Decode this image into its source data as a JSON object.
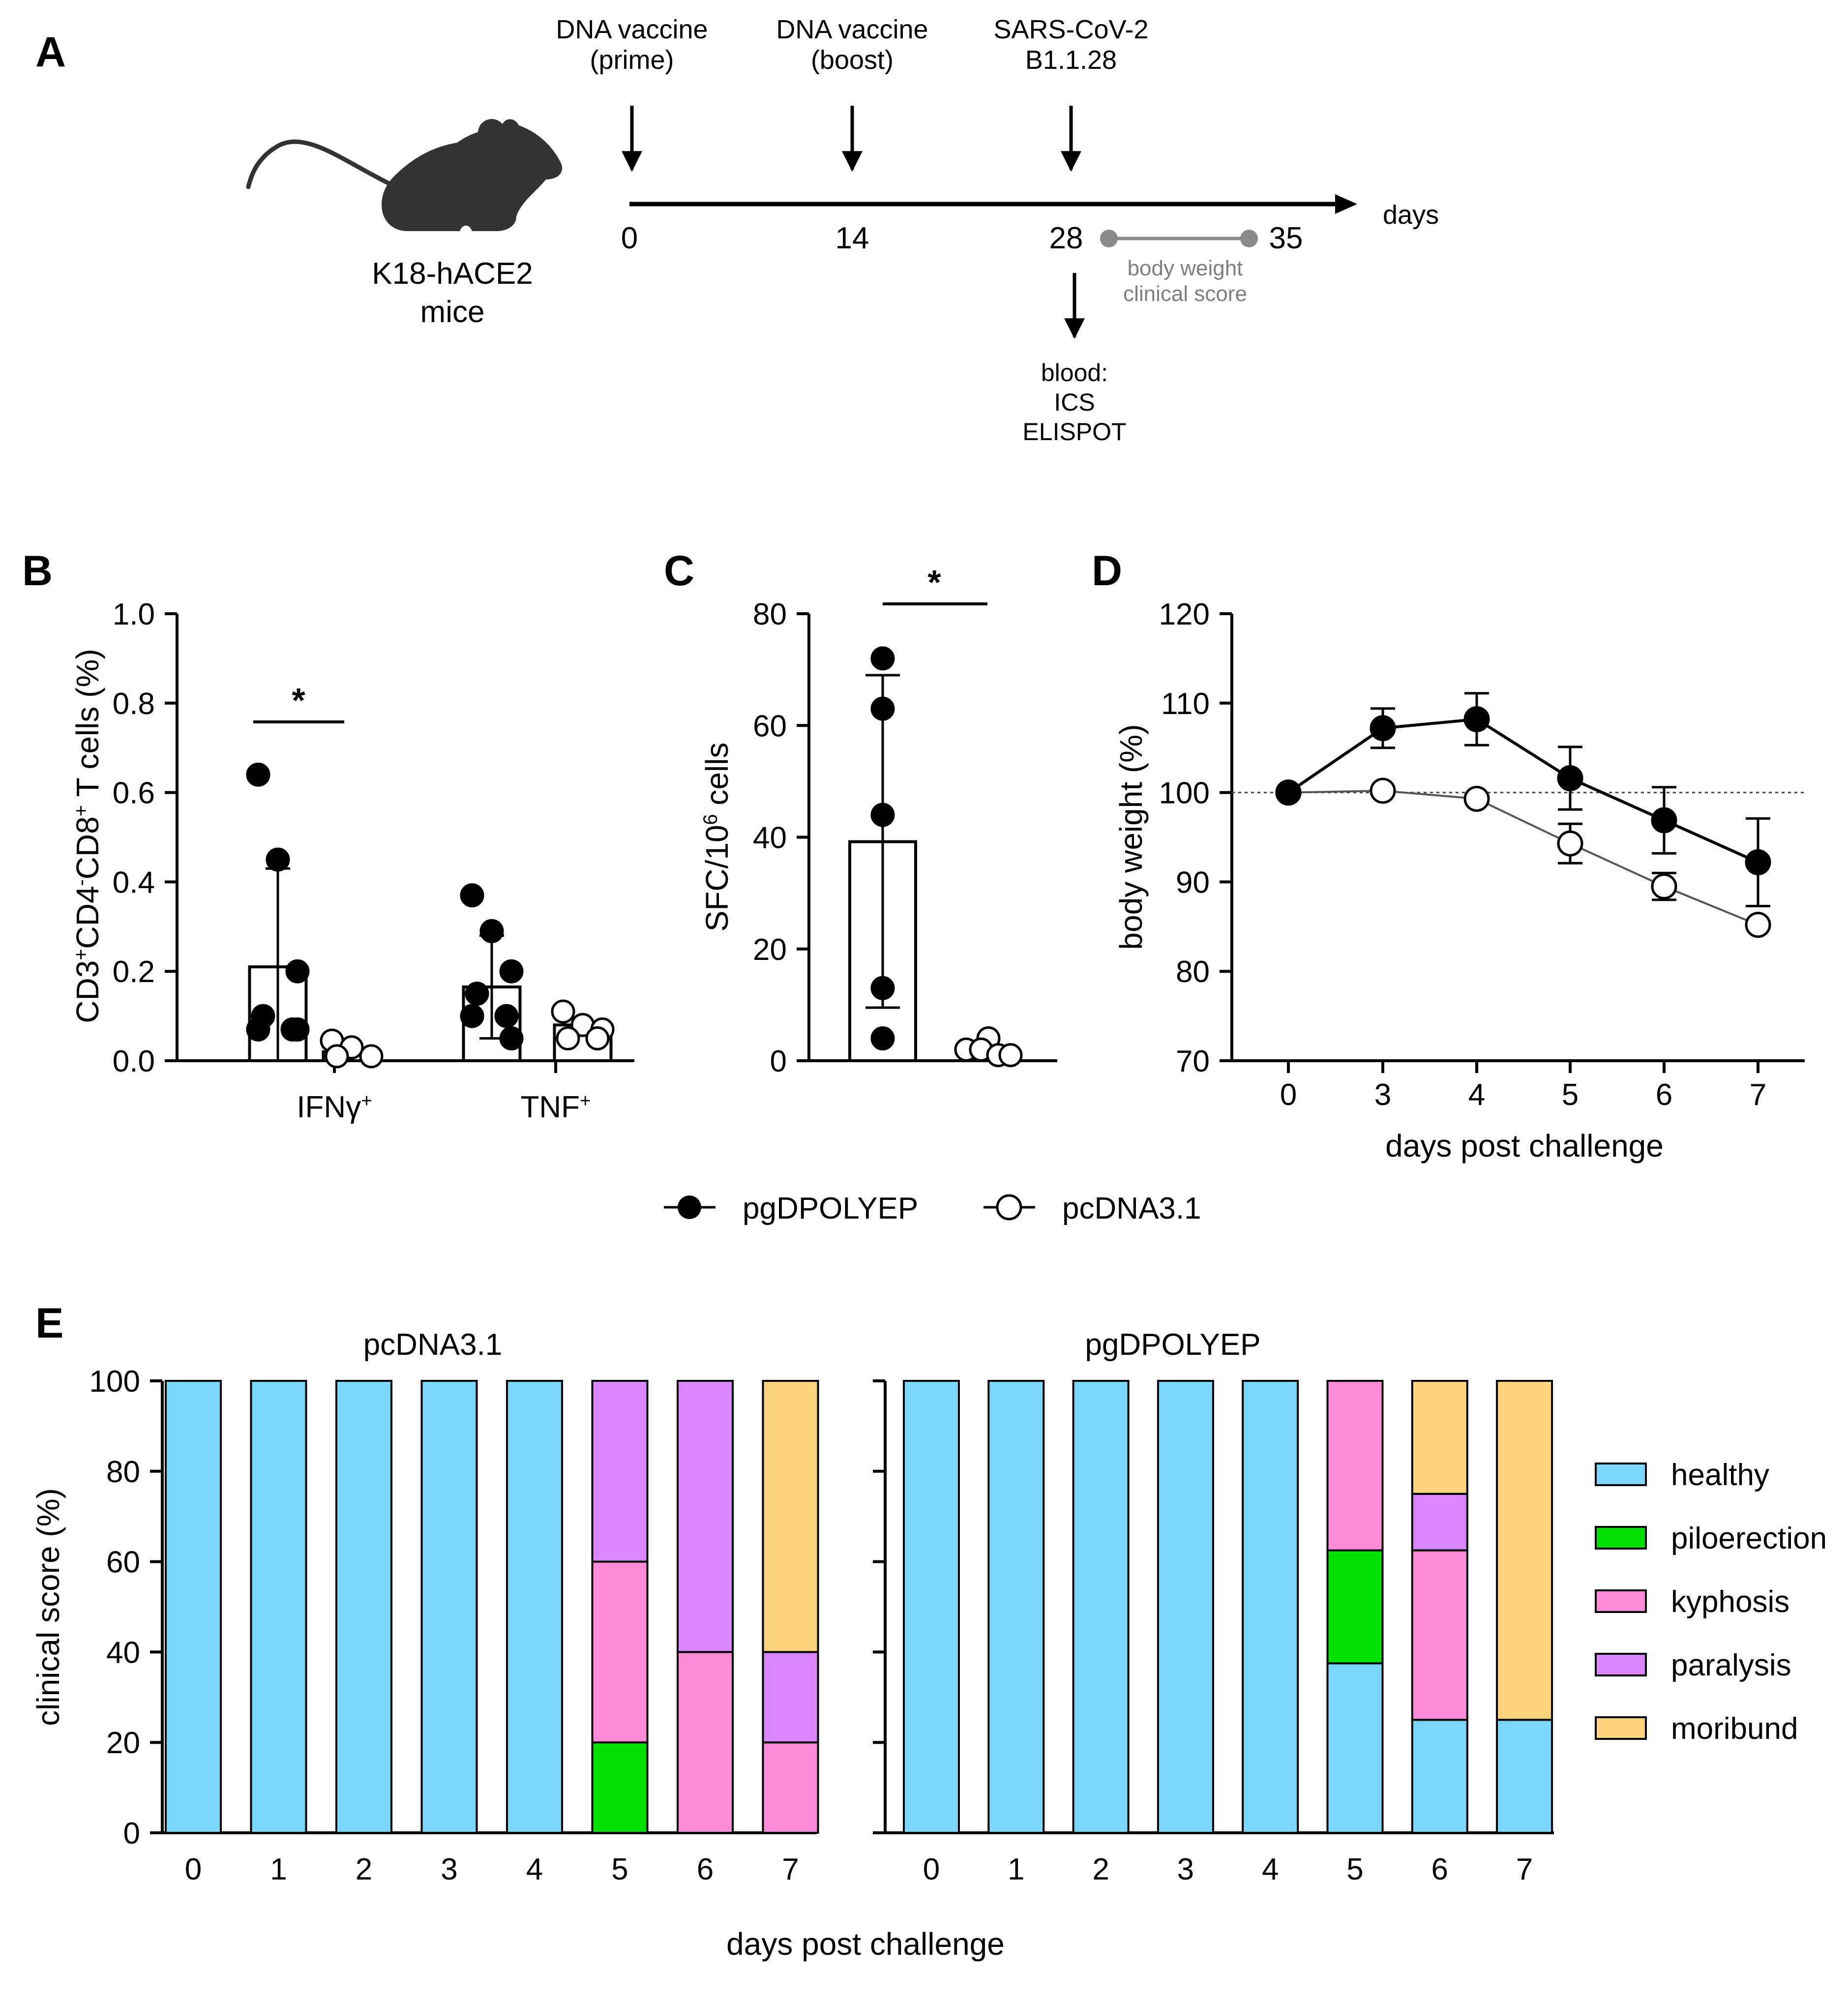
{
  "panel_labels": {
    "a": "A",
    "b": "B",
    "c": "C",
    "d": "D",
    "e": "E"
  },
  "colors": {
    "healthy": "#79D5F9",
    "piloerection": "#00E000",
    "kyphosis": "#FF8AD8",
    "paralysis": "#D987FF",
    "moribund": "#FDD37E",
    "timeline_grey": "#8a8a8a",
    "filled": "#000000",
    "open": "#ffffff"
  },
  "panel_a": {
    "mouse_label_1": "K18-hACE2",
    "mouse_label_2": "mice",
    "mouse_icon": "mouse-silhouette-icon",
    "events": [
      {
        "line1": "DNA vaccine",
        "line2": "(prime)"
      },
      {
        "line1": "DNA vaccine",
        "line2": "(boost)"
      },
      {
        "line1": "SARS-CoV-2",
        "line2": "B1.1.28"
      }
    ],
    "ticks": [
      "0",
      "14",
      "28",
      "35"
    ],
    "axis_unit": "days",
    "monitor_1": "body weight",
    "monitor_2": "clinical score",
    "blood_1": "blood:",
    "blood_2": "ICS",
    "blood_3": "ELISPOT"
  },
  "legend_main": {
    "series_1": "pgDPOLYEP",
    "series_2": "pcDNA3.1"
  },
  "panel_e_titles": {
    "left": "pcDNA3.1",
    "right": "pgDPOLYEP"
  },
  "chart_data": [
    {
      "id": "B",
      "type": "bar",
      "ylabel": "CD3+CD4-CD8+ T cells (%)",
      "ylim": [
        0,
        1.0
      ],
      "yticks": [
        "0.0",
        "0.2",
        "0.4",
        "0.6",
        "0.8",
        "1.0"
      ],
      "categories": [
        "IFNγ+",
        "TNF+"
      ],
      "series": [
        {
          "name": "pgDPOLYEP",
          "bar_means": [
            0.21,
            0.165
          ],
          "sd_upper": [
            0.43,
            0.28
          ],
          "sd_lower": [
            0.0,
            0.05
          ],
          "points": [
            [
              0.64,
              0.45,
              0.2,
              0.1,
              0.07,
              0.07,
              0.07
            ],
            [
              0.37,
              0.29,
              0.2,
              0.15,
              0.1,
              0.1,
              0.05
            ]
          ]
        },
        {
          "name": "pcDNA3.1",
          "bar_means": [
            0.02,
            0.08
          ],
          "sd_upper": [
            null,
            null
          ],
          "sd_lower": [
            null,
            null
          ],
          "points": [
            [
              0.045,
              0.03,
              0.01,
              0.01
            ],
            [
              0.11,
              0.08,
              0.07,
              0.05,
              0.05
            ]
          ]
        }
      ],
      "significance": "*"
    },
    {
      "id": "C",
      "type": "bar",
      "ylabel": "SFC/10^6 cells",
      "ylim": [
        0,
        80
      ],
      "yticks": [
        "0",
        "20",
        "40",
        "60",
        "80"
      ],
      "categories": [
        "pgDPOLYEP",
        "pcDNA3.1"
      ],
      "bar_means": [
        39.2,
        0
      ],
      "sd_upper": [
        69,
        null
      ],
      "sd_lower": [
        9.5,
        null
      ],
      "points": [
        [
          72,
          63,
          44,
          13,
          4
        ],
        [
          4,
          2,
          2,
          1,
          1
        ]
      ],
      "significance": "*"
    },
    {
      "id": "D",
      "type": "line",
      "ylabel": "body weight (%)",
      "xlabel": "days post challenge",
      "ylim": [
        70,
        120
      ],
      "yticks": [
        "70",
        "80",
        "90",
        "100",
        "110",
        "120"
      ],
      "x": [
        0,
        3,
        4,
        5,
        6,
        7
      ],
      "xticks": [
        "0",
        "3",
        "4",
        "5",
        "6",
        "7"
      ],
      "reference_line": 100,
      "series": [
        {
          "name": "pgDPOLYEP",
          "values": [
            100,
            107.2,
            108.2,
            101.6,
            96.9,
            92.2
          ],
          "err": [
            0,
            2.2,
            2.9,
            3.5,
            3.7,
            4.9
          ]
        },
        {
          "name": "pcDNA3.1",
          "values": [
            100,
            100.2,
            99.3,
            94.3,
            89.5,
            85.2
          ],
          "err": [
            0,
            0,
            0,
            2.2,
            1.5,
            0
          ]
        }
      ]
    },
    {
      "id": "E",
      "type": "bar",
      "stacked": true,
      "ylabel": "clinical score (%)",
      "xlabel": "days post challenge",
      "ylim": [
        0,
        100
      ],
      "yticks": [
        "0",
        "20",
        "40",
        "60",
        "80",
        "100"
      ],
      "categories": [
        "0",
        "1",
        "2",
        "3",
        "4",
        "5",
        "6",
        "7"
      ],
      "legend": [
        "healthy",
        "piloerection",
        "kyphosis",
        "paralysis",
        "moribund"
      ],
      "groups": [
        {
          "title": "pcDNA3.1",
          "series": [
            {
              "name": "healthy",
              "values": [
                100,
                100,
                100,
                100,
                100,
                0,
                0,
                0
              ]
            },
            {
              "name": "piloerection",
              "values": [
                0,
                0,
                0,
                0,
                0,
                20,
                0,
                0
              ]
            },
            {
              "name": "kyphosis",
              "values": [
                0,
                0,
                0,
                0,
                0,
                40,
                40,
                20
              ]
            },
            {
              "name": "paralysis",
              "values": [
                0,
                0,
                0,
                0,
                0,
                40,
                60,
                20
              ]
            },
            {
              "name": "moribund",
              "values": [
                0,
                0,
                0,
                0,
                0,
                0,
                0,
                60
              ]
            }
          ]
        },
        {
          "title": "pgDPOLYEP",
          "series": [
            {
              "name": "healthy",
              "values": [
                100,
                100,
                100,
                100,
                100,
                37.5,
                25,
                25
              ]
            },
            {
              "name": "piloerection",
              "values": [
                0,
                0,
                0,
                0,
                0,
                25,
                0,
                0
              ]
            },
            {
              "name": "kyphosis",
              "values": [
                0,
                0,
                0,
                0,
                0,
                37.5,
                37.5,
                0
              ]
            },
            {
              "name": "paralysis",
              "values": [
                0,
                0,
                0,
                0,
                0,
                0,
                12.5,
                0
              ]
            },
            {
              "name": "moribund",
              "values": [
                0,
                0,
                0,
                0,
                0,
                0,
                25,
                75
              ]
            }
          ]
        }
      ]
    }
  ]
}
